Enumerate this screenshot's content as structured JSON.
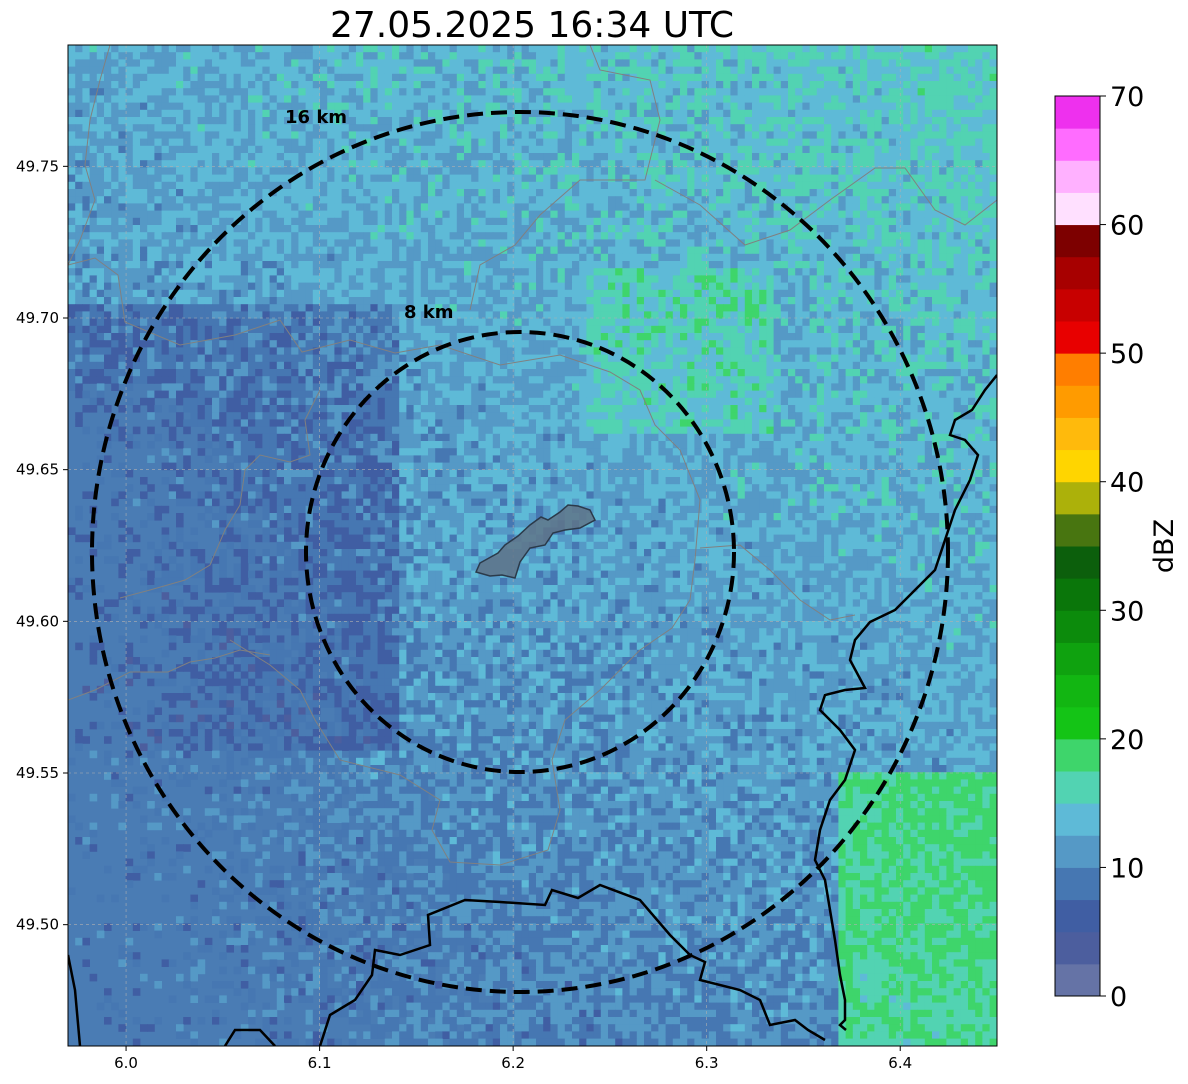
{
  "title": "27.05.2025 16:34 UTC",
  "map": {
    "lon_range": [
      5.97,
      6.45
    ],
    "lat_range": [
      49.46,
      49.79
    ],
    "x_ticks": [
      "6.0",
      "6.1",
      "6.2",
      "6.3",
      "6.4"
    ],
    "x_tick_values": [
      6.0,
      6.1,
      6.2,
      6.3,
      6.4
    ],
    "y_ticks": [
      "49.50",
      "49.55",
      "49.60",
      "49.65",
      "49.70",
      "49.75"
    ],
    "y_tick_values": [
      49.5,
      49.55,
      49.6,
      49.65,
      49.7,
      49.75
    ],
    "grid": "on (dotted)",
    "rings": [
      {
        "label": "8 km",
        "radius_km": 8
      },
      {
        "label": "16 km",
        "radius_km": 16
      }
    ],
    "center_lon": 6.203,
    "center_lat": 49.623,
    "highlighted_area": "urban polygon near center (grey outline)",
    "colors": {
      "ring": "#000000",
      "border": "#000000",
      "admin_boundary": "#808080",
      "no_echo": "#ffffff"
    }
  },
  "colorbar": {
    "label": "dBZ",
    "range": [
      0,
      70
    ],
    "ticks": [
      "0",
      "10",
      "20",
      "30",
      "40",
      "50",
      "60",
      "70"
    ],
    "tick_values": [
      0,
      10,
      20,
      30,
      40,
      50,
      60,
      70
    ],
    "levels": [
      {
        "from": 0,
        "to": 2.5,
        "color": "#6573a6"
      },
      {
        "from": 2.5,
        "to": 5,
        "color": "#4c5e9e"
      },
      {
        "from": 5,
        "to": 7.5,
        "color": "#405ea3"
      },
      {
        "from": 7.5,
        "to": 10,
        "color": "#4677b2"
      },
      {
        "from": 10,
        "to": 12.5,
        "color": "#5599c6"
      },
      {
        "from": 12.5,
        "to": 15,
        "color": "#5ebad7"
      },
      {
        "from": 15,
        "to": 17.5,
        "color": "#52d3b2"
      },
      {
        "from": 17.5,
        "to": 20,
        "color": "#3ed56b"
      },
      {
        "from": 20,
        "to": 22.5,
        "color": "#14c416"
      },
      {
        "from": 22.5,
        "to": 25,
        "color": "#12b612"
      },
      {
        "from": 25,
        "to": 27.5,
        "color": "#0fa20f"
      },
      {
        "from": 27.5,
        "to": 30,
        "color": "#0c8b0c"
      },
      {
        "from": 30,
        "to": 32.5,
        "color": "#0a760a"
      },
      {
        "from": 32.5,
        "to": 35,
        "color": "#0c5f0c"
      },
      {
        "from": 35,
        "to": 37.5,
        "color": "#487510"
      },
      {
        "from": 37.5,
        "to": 40,
        "color": "#acb10a"
      },
      {
        "from": 40,
        "to": 42.5,
        "color": "#ffd500"
      },
      {
        "from": 42.5,
        "to": 45,
        "color": "#ffba0c"
      },
      {
        "from": 45,
        "to": 47.5,
        "color": "#ff9b00"
      },
      {
        "from": 47.5,
        "to": 50,
        "color": "#ff7e00"
      },
      {
        "from": 50,
        "to": 52.5,
        "color": "#e80000"
      },
      {
        "from": 52.5,
        "to": 55,
        "color": "#c80000"
      },
      {
        "from": 55,
        "to": 57.5,
        "color": "#a70000"
      },
      {
        "from": 57.5,
        "to": 60,
        "color": "#7d0000"
      },
      {
        "from": 60,
        "to": 62.5,
        "color": "#ffe0ff"
      },
      {
        "from": 62.5,
        "to": 65,
        "color": "#ffb1ff"
      },
      {
        "from": 65,
        "to": 67.5,
        "color": "#ff6cff"
      },
      {
        "from": 67.5,
        "to": 70,
        "color": "#ee30ee"
      }
    ]
  }
}
